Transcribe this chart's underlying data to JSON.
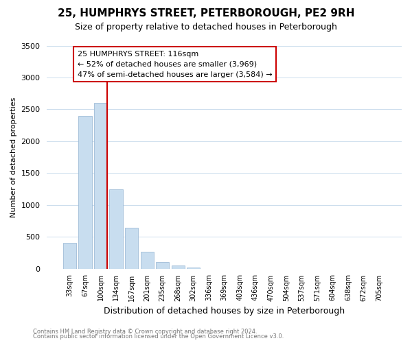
{
  "title": "25, HUMPHRYS STREET, PETERBOROUGH, PE2 9RH",
  "subtitle": "Size of property relative to detached houses in Peterborough",
  "xlabel": "Distribution of detached houses by size in Peterborough",
  "ylabel": "Number of detached properties",
  "bar_labels": [
    "33sqm",
    "67sqm",
    "100sqm",
    "134sqm",
    "167sqm",
    "201sqm",
    "235sqm",
    "268sqm",
    "302sqm",
    "336sqm",
    "369sqm",
    "403sqm",
    "436sqm",
    "470sqm",
    "504sqm",
    "537sqm",
    "571sqm",
    "604sqm",
    "638sqm",
    "672sqm",
    "705sqm"
  ],
  "bar_values": [
    400,
    2400,
    2600,
    1250,
    640,
    260,
    100,
    50,
    20,
    0,
    0,
    0,
    0,
    0,
    0,
    0,
    0,
    0,
    0,
    0,
    0
  ],
  "bar_color": "#c8ddef",
  "bar_edge_color": "#a0bcd8",
  "vline_x": 2.43,
  "vline_color": "#cc0000",
  "ylim": [
    0,
    3500
  ],
  "yticks": [
    0,
    500,
    1000,
    1500,
    2000,
    2500,
    3000,
    3500
  ],
  "annotation_line1": "25 HUMPHRYS STREET: 116sqm",
  "annotation_line2": "← 52% of detached houses are smaller (3,969)",
  "annotation_line3": "47% of semi-detached houses are larger (3,584) →",
  "footer1": "Contains HM Land Registry data © Crown copyright and database right 2024.",
  "footer2": "Contains public sector information licensed under the Open Government Licence v3.0.",
  "background_color": "#ffffff",
  "grid_color": "#ccdded"
}
